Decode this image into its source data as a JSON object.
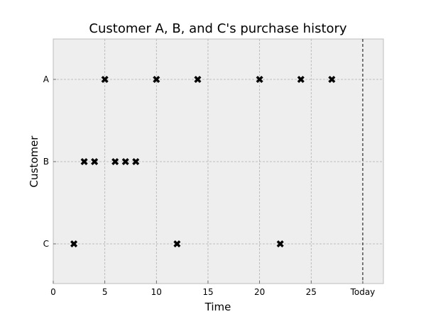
{
  "chart_data": {
    "type": "scatter",
    "title": "Customer A, B, and C's purchase history",
    "xlabel": "Time",
    "ylabel": "Customer",
    "xlim": [
      0,
      32
    ],
    "x_ticks": [
      0,
      5,
      10,
      15,
      20,
      25
    ],
    "today_label": "Today",
    "today_x": 30,
    "categories": [
      "A",
      "B",
      "C"
    ],
    "grid": true,
    "marker": "X",
    "marker_color": "#000000",
    "background_color": "#eeeeee",
    "series": [
      {
        "category": "A",
        "x": [
          5,
          10,
          14,
          20,
          24,
          27
        ]
      },
      {
        "category": "B",
        "x": [
          3,
          4,
          6,
          7,
          8
        ]
      },
      {
        "category": "C",
        "x": [
          2,
          12,
          22
        ]
      }
    ]
  }
}
